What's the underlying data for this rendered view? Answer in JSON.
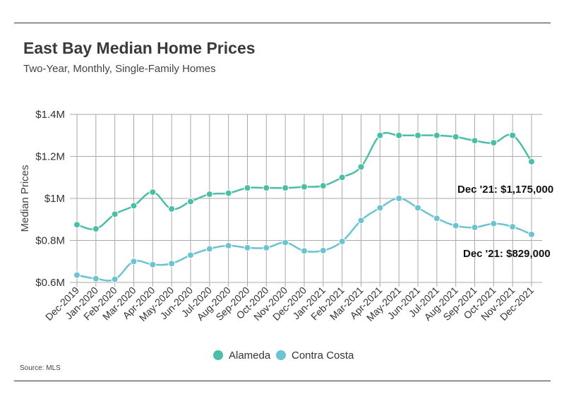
{
  "header": {
    "title": "East Bay Median Home Prices",
    "subtitle": "Two-Year, Monthly, Single-Family Homes"
  },
  "footer": {
    "source": "Source: MLS"
  },
  "colors": {
    "alameda": "#4bbfa5",
    "contra_costa": "#6cc4d0",
    "grid": "#aaaaaa"
  },
  "chart_data": {
    "type": "line",
    "title": "East Bay Median Home Prices",
    "subtitle": "Two-Year, Monthly, Single-Family Homes",
    "ylabel": "Median Prices",
    "xlabel": "",
    "ylim": [
      600000,
      1400000
    ],
    "yticks": [
      600000,
      800000,
      1000000,
      1200000,
      1400000
    ],
    "ytick_labels": [
      "$0.6M",
      "$0.8M",
      "$1M",
      "$1.2M",
      "$1.4M"
    ],
    "grid": "on",
    "legend_position": "bottom",
    "categories": [
      "Dec-2019",
      "Jan-2020",
      "Feb-2020",
      "Mar-2020",
      "Apr-2020",
      "May-2020",
      "Jun-2020",
      "Jul-2020",
      "Aug-2020",
      "Sep-2020",
      "Oct-2020",
      "Nov-2020",
      "Dec-2020",
      "Jan-2021",
      "Feb-2021",
      "Mar-2021",
      "Apr-2021",
      "May-2021",
      "Jun-2021",
      "Jul-2021",
      "Aug-2021",
      "Sep-2021",
      "Oct-2021",
      "Nov-2021",
      "Dec-2021"
    ],
    "series": [
      {
        "name": "Alameda",
        "values": [
          875000,
          855000,
          925000,
          965000,
          1030000,
          950000,
          985000,
          1020000,
          1025000,
          1050000,
          1050000,
          1050000,
          1055000,
          1060000,
          1100000,
          1150000,
          1300000,
          1300000,
          1300000,
          1300000,
          1293000,
          1275000,
          1265000,
          1300000,
          1175000
        ]
      },
      {
        "name": "Contra Costa",
        "values": [
          635000,
          618000,
          615000,
          700000,
          685000,
          690000,
          730000,
          760000,
          775000,
          765000,
          765000,
          790000,
          750000,
          752000,
          795000,
          895000,
          955000,
          1000000,
          955000,
          905000,
          870000,
          862000,
          880000,
          865000,
          829000
        ]
      }
    ],
    "annotations": [
      "Dec '21: $1,175,000",
      "Dec '21: $829,000"
    ]
  }
}
